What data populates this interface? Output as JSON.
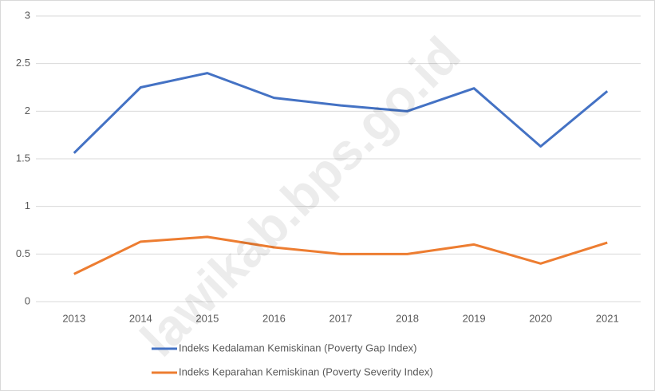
{
  "chart_data": {
    "type": "line",
    "watermark": "lawikab.bps.go.id",
    "categories": [
      "2013",
      "2014",
      "2015",
      "2016",
      "2017",
      "2018",
      "2019",
      "2020",
      "2021"
    ],
    "series": [
      {
        "name": "Indeks Kedalaman Kemiskinan (Poverty Gap Index)",
        "color": "#4472c4",
        "values": [
          1.56,
          2.25,
          2.4,
          2.14,
          2.06,
          2.0,
          2.24,
          1.63,
          2.21
        ]
      },
      {
        "name": "Indeks Keparahan Kemiskinan (Poverty Severity Index)",
        "color": "#ed7d31",
        "values": [
          0.29,
          0.63,
          0.68,
          0.57,
          0.5,
          0.5,
          0.6,
          0.4,
          0.62
        ]
      }
    ],
    "ylim": [
      0,
      3
    ],
    "yticks": [
      0,
      0.5,
      1,
      1.5,
      2,
      2.5,
      3
    ],
    "grid": true,
    "legend": "bottom"
  }
}
